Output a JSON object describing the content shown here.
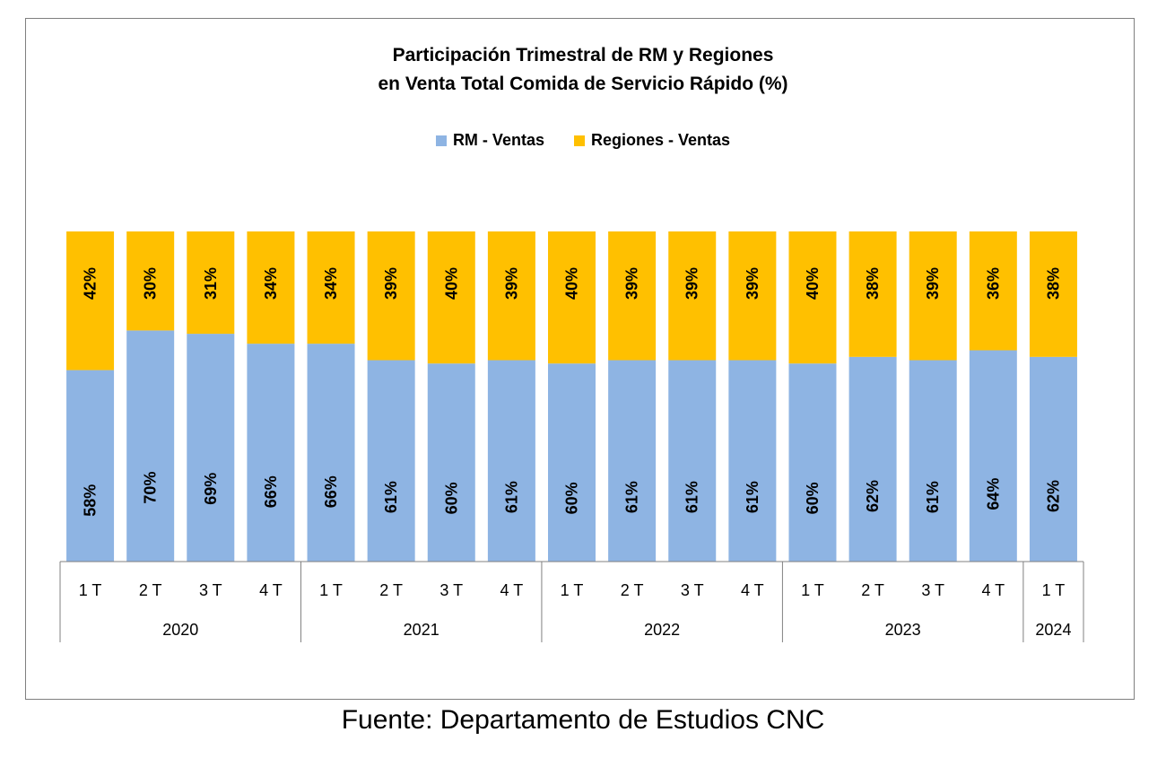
{
  "title_line1": "Participación Trimestral de RM y Regiones",
  "title_line2": "en Venta Total Comida de Servicio Rápido (%)",
  "source": "Fuente: Departamento de Estudios CNC",
  "colors": {
    "rm": "#8EB4E3",
    "regiones": "#FFC000",
    "frame": "#7F7F7F",
    "axis": "#808080"
  },
  "chart_data": {
    "type": "bar",
    "stacked": true,
    "percent_stacked": true,
    "title": "Participación Trimestral de RM y Regiones en Venta Total Comida de Servicio Rápido (%)",
    "legend_position": "top",
    "categories": [
      "1 T",
      "2 T",
      "3 T",
      "4 T",
      "1 T",
      "2 T",
      "3 T",
      "4 T",
      "1 T",
      "2 T",
      "3 T",
      "4 T",
      "1 T",
      "2 T",
      "3 T",
      "4 T",
      "1 T"
    ],
    "groups": [
      {
        "label": "2020",
        "count": 4
      },
      {
        "label": "2021",
        "count": 4
      },
      {
        "label": "2022",
        "count": 4
      },
      {
        "label": "2023",
        "count": 4
      },
      {
        "label": "2024",
        "count": 1
      }
    ],
    "series": [
      {
        "name": "RM - Ventas",
        "values": [
          58,
          70,
          69,
          66,
          66,
          61,
          60,
          61,
          60,
          61,
          61,
          61,
          60,
          62,
          61,
          64,
          62
        ]
      },
      {
        "name": "Regiones - Ventas",
        "values": [
          42,
          30,
          31,
          34,
          34,
          39,
          40,
          39,
          40,
          39,
          39,
          39,
          40,
          38,
          39,
          36,
          38
        ]
      }
    ],
    "data_label_suffix": "%",
    "ylim": [
      0,
      100
    ],
    "grid": false
  }
}
